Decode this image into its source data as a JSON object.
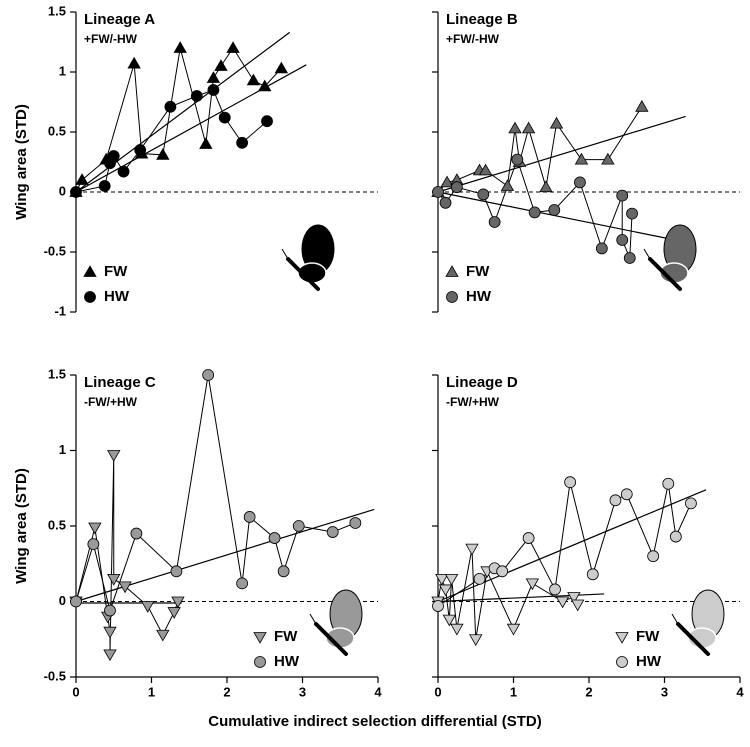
{
  "xlabel": "Cumulative indirect selection differential (STD)",
  "chart_data": [
    {
      "type": "line",
      "title": "Lineage A",
      "subtitle": "+FW/-HW",
      "ylabel": "Wing area (STD)",
      "xlim": [
        0,
        4
      ],
      "ylim": [
        -1,
        1.5
      ],
      "yticks": [
        -1,
        -0.5,
        0,
        0.5,
        1,
        1.5
      ],
      "ref_line": 0,
      "legend": "lower left",
      "series": [
        {
          "name": "FW",
          "marker": "triangle-up",
          "color": "#000000",
          "x": [
            0,
            0.08,
            0.4,
            0.77,
            0.87,
            1.15,
            1.38,
            1.72,
            1.82,
            1.92,
            2.08,
            2.35,
            2.5,
            2.72
          ],
          "values": [
            0,
            0.1,
            0.27,
            1.07,
            0.32,
            0.31,
            1.2,
            0.4,
            0.95,
            1.05,
            1.2,
            0.93,
            0.88,
            1.03
          ],
          "trend": {
            "x": [
              0,
              2.83
            ],
            "y": [
              0,
              1.33
            ]
          }
        },
        {
          "name": "HW",
          "marker": "circle",
          "color": "#000000",
          "x": [
            0,
            0.38,
            0.45,
            0.5,
            0.63,
            0.85,
            1.25,
            1.6,
            1.82,
            1.97,
            2.2,
            2.53
          ],
          "values": [
            0,
            0.05,
            0.24,
            0.3,
            0.17,
            0.35,
            0.71,
            0.8,
            0.85,
            0.62,
            0.41,
            0.59
          ],
          "trend": {
            "x": [
              0,
              3.05
            ],
            "y": [
              0,
              1.06
            ]
          }
        }
      ]
    },
    {
      "type": "line",
      "title": "Lineage B",
      "subtitle": "+FW/-HW",
      "xlim": [
        0,
        4
      ],
      "ylim": [
        -1,
        1.5
      ],
      "yticks": [
        -1,
        -0.5,
        0,
        0.5,
        1,
        1.5
      ],
      "ref_line": 0,
      "legend": "lower left",
      "series": [
        {
          "name": "FW",
          "marker": "triangle-up",
          "color": "#666666",
          "x": [
            0,
            0.12,
            0.25,
            0.55,
            0.63,
            0.92,
            1.02,
            1.08,
            1.2,
            1.43,
            1.57,
            1.9,
            2.25,
            2.7
          ],
          "values": [
            0,
            0.08,
            0.1,
            0.18,
            0.18,
            0.05,
            0.53,
            0.25,
            0.53,
            0.04,
            0.57,
            0.27,
            0.27,
            0.71
          ],
          "trend": {
            "x": [
              0,
              3.28
            ],
            "y": [
              0,
              0.63
            ]
          }
        },
        {
          "name": "HW",
          "marker": "circle",
          "color": "#666666",
          "x": [
            0,
            0.1,
            0.25,
            0.6,
            0.75,
            1.05,
            1.28,
            1.54,
            1.88,
            2.17,
            2.44,
            2.44,
            2.54,
            2.57
          ],
          "values": [
            0,
            -0.09,
            0.04,
            -0.02,
            -0.25,
            0.27,
            -0.17,
            -0.15,
            0.08,
            -0.47,
            -0.03,
            -0.4,
            -0.55,
            -0.18
          ],
          "trend": {
            "x": [
              0,
              3.3
            ],
            "y": [
              0,
              -0.42
            ]
          }
        }
      ]
    },
    {
      "type": "line",
      "title": "Lineage C",
      "subtitle": "-FW/+HW",
      "ylabel": "Wing area (STD)",
      "xlim": [
        0,
        4
      ],
      "ylim": [
        -0.5,
        1.5
      ],
      "yticks": [
        -0.5,
        0,
        0.5,
        1,
        1.5
      ],
      "xticks": [
        0,
        1,
        2,
        3,
        4
      ],
      "ref_line": 0,
      "legend": "lower right",
      "series": [
        {
          "name": "FW",
          "marker": "triangle-down",
          "color": "#999999",
          "x": [
            0,
            0.25,
            0.42,
            0.45,
            0.45,
            0.5,
            0.5,
            0.65,
            0.95,
            1.15,
            1.3,
            1.35
          ],
          "values": [
            0,
            0.49,
            -0.1,
            -0.2,
            -0.35,
            0.97,
            0.15,
            0.1,
            -0.03,
            -0.22,
            -0.07,
            0
          ],
          "trend": {
            "x": [
              0,
              1.4
            ],
            "y": [
              -0.01,
              -0.01
            ]
          }
        },
        {
          "name": "HW",
          "marker": "circle",
          "color": "#999999",
          "x": [
            0,
            0.23,
            0.45,
            0.8,
            1.33,
            1.75,
            2.2,
            2.3,
            2.63,
            2.75,
            2.95,
            3.4,
            3.7
          ],
          "values": [
            0,
            0.38,
            -0.06,
            0.45,
            0.2,
            1.5,
            0.12,
            0.56,
            0.42,
            0.2,
            0.5,
            0.46,
            0.52
          ],
          "trend": {
            "x": [
              0,
              3.95
            ],
            "y": [
              0,
              0.61
            ]
          }
        }
      ]
    },
    {
      "type": "line",
      "title": "Lineage D",
      "subtitle": "-FW/+HW",
      "xlim": [
        0,
        4
      ],
      "ylim": [
        -0.5,
        1.5
      ],
      "yticks": [
        -0.5,
        0,
        0.5,
        1,
        1.5
      ],
      "xticks": [
        0,
        1,
        2,
        3,
        4
      ],
      "ref_line": 0,
      "legend": "lower right",
      "series": [
        {
          "name": "FW",
          "marker": "triangle-down",
          "color": "#cccccc",
          "x": [
            0,
            0.05,
            0.1,
            0.15,
            0.18,
            0.25,
            0.45,
            0.5,
            0.65,
            1.0,
            1.25,
            1.65,
            1.8,
            1.85
          ],
          "values": [
            0,
            0.15,
            0.08,
            -0.12,
            0.15,
            -0.18,
            0.35,
            -0.25,
            0.2,
            -0.18,
            0.12,
            0,
            0.03,
            -0.02
          ],
          "trend": {
            "x": [
              0,
              2.2
            ],
            "y": [
              0,
              0.05
            ]
          }
        },
        {
          "name": "HW",
          "marker": "circle",
          "color": "#cccccc",
          "x": [
            0,
            0.55,
            0.75,
            0.85,
            1.2,
            1.55,
            1.75,
            2.05,
            2.35,
            2.5,
            2.85,
            3.05,
            3.15,
            3.35
          ],
          "values": [
            -0.03,
            0.15,
            0.22,
            0.2,
            0.42,
            0.08,
            0.79,
            0.18,
            0.67,
            0.71,
            0.3,
            0.78,
            0.43,
            0.65
          ],
          "trend": {
            "x": [
              0,
              3.55
            ],
            "y": [
              0,
              0.74
            ]
          }
        }
      ]
    }
  ]
}
